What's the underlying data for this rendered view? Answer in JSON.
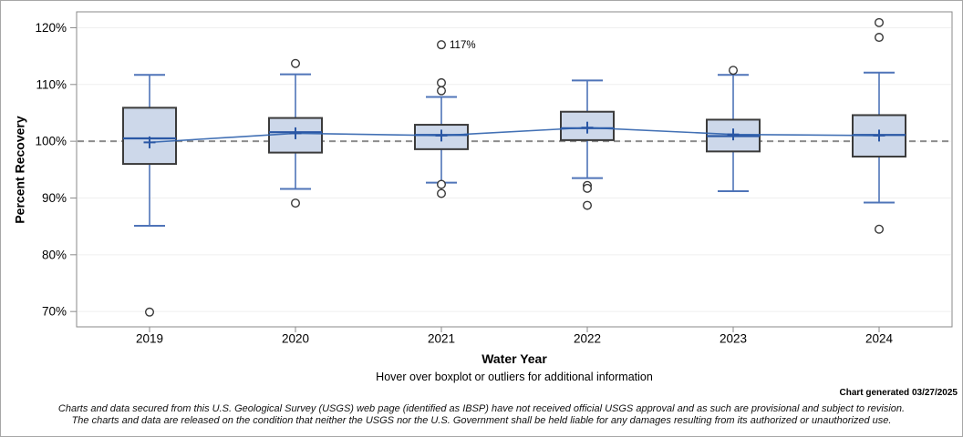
{
  "chart": {
    "hover_note": "Hover over boxplot or outliers for additional information",
    "generated_label": "Chart generated 03/27/2025",
    "disclaimer_line1": "Charts and data secured from this U.S. Geological Survey (USGS) web page (identified as IBSP) have not received official USGS approval and as such are provisional and subject to revision.",
    "disclaimer_line2": "The charts and data are released on the condition that neither the USGS nor the U.S. Government shall be held liable for any damages resulting from its authorized or unauthorized use."
  },
  "chart_data": {
    "type": "boxplot",
    "title": "",
    "xlabel": "Water Year",
    "ylabel": "Percent Recovery",
    "categories": [
      "2019",
      "2020",
      "2021",
      "2022",
      "2023",
      "2024"
    ],
    "y_ticks": [
      {
        "value": 70,
        "label": "70%"
      },
      {
        "value": 80,
        "label": "80%"
      },
      {
        "value": 90,
        "label": "90%"
      },
      {
        "value": 100,
        "label": "100%"
      },
      {
        "value": 110,
        "label": "110%"
      },
      {
        "value": 120,
        "label": "120%"
      }
    ],
    "ylim": [
      67.3,
      122.8
    ],
    "grid": "horizontal",
    "legend": "none",
    "reference_line": 100,
    "series": [
      {
        "category": "2019",
        "whisker_low": 85.1,
        "q1": 96.0,
        "median": 100.5,
        "mean": 99.8,
        "q3": 105.9,
        "whisker_high": 111.7,
        "outliers": [
          69.9
        ]
      },
      {
        "category": "2020",
        "whisker_low": 91.6,
        "q1": 98.0,
        "median": 101.6,
        "mean": 101.4,
        "q3": 104.1,
        "whisker_high": 111.8,
        "outliers": [
          113.7,
          89.1
        ]
      },
      {
        "category": "2021",
        "whisker_low": 92.7,
        "q1": 98.6,
        "median": 101.1,
        "mean": 101.0,
        "q3": 102.9,
        "whisker_high": 107.8,
        "outliers": [
          117,
          110.3,
          108.9,
          92.4,
          90.8
        ]
      },
      {
        "category": "2022",
        "whisker_low": 93.5,
        "q1": 100.2,
        "median": 102.3,
        "mean": 102.4,
        "q3": 105.2,
        "whisker_high": 110.7,
        "outliers": [
          92.2,
          91.7,
          88.7
        ]
      },
      {
        "category": "2023",
        "whisker_low": 91.2,
        "q1": 98.2,
        "median": 100.9,
        "mean": 101.2,
        "q3": 103.8,
        "whisker_high": 111.7,
        "outliers": [
          112.5
        ]
      },
      {
        "category": "2024",
        "whisker_low": 89.2,
        "q1": 97.3,
        "median": 101.1,
        "mean": 101.0,
        "q3": 104.6,
        "whisker_high": 112.1,
        "outliers": [
          120.9,
          118.3,
          84.5
        ]
      }
    ],
    "annotations": [
      {
        "category": "2021",
        "value": 117,
        "label": "117%"
      }
    ]
  },
  "colors": {
    "box_fill": "#cdd8ea",
    "box_border": "#3b3b3b",
    "median": "#2a57a5",
    "mean": "#2a57a5",
    "whisker": "#4f74b8",
    "connect_line": "#2f62ad",
    "reference_line": "#8c8c8c",
    "gridline": "#efefef",
    "axis": "#8a8a8a",
    "outlier_stroke": "#383838",
    "text": "#000000"
  }
}
